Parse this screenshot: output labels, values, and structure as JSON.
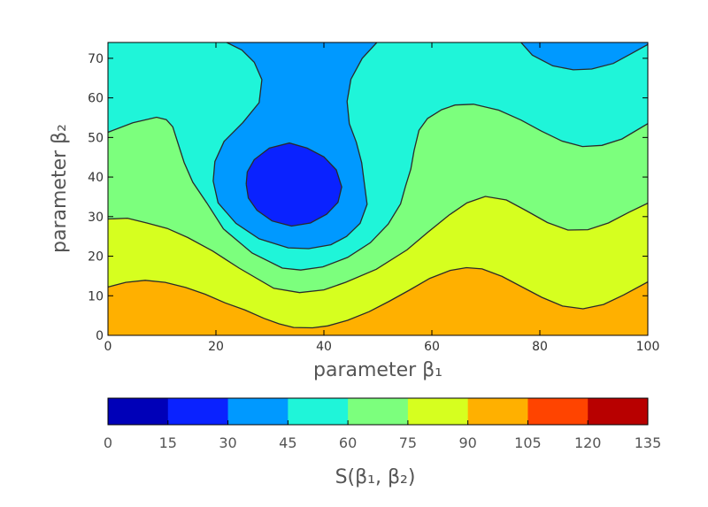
{
  "chart_data": {
    "type": "filled-contour",
    "xlabel": "parameter β₁",
    "ylabel": "parameter β₂",
    "xlim": [
      0,
      100
    ],
    "ylim": [
      0,
      74
    ],
    "x_ticks": [
      "0",
      "20",
      "40",
      "60",
      "80",
      "100"
    ],
    "y_ticks": [
      "0",
      "10",
      "20",
      "30",
      "40",
      "50",
      "60",
      "70"
    ],
    "colorbar": {
      "label": "S(β₁, β₂)",
      "orientation": "horizontal",
      "levels": [
        0,
        15,
        30,
        45,
        60,
        75,
        90,
        105,
        120,
        135
      ],
      "tick_labels": [
        "0",
        "15",
        "30",
        "45",
        "60",
        "75",
        "90",
        "105",
        "120",
        "135"
      ],
      "colors": [
        "#0000b8",
        "#0a22ff",
        "#0099ff",
        "#1ff5d9",
        "#7cff7d",
        "#d6ff1f",
        "#ffb000",
        "#ff4400",
        "#b80000"
      ]
    },
    "contour_lines": [
      {
        "level": 15,
        "points": [
          [
            25.6,
            38.2
          ],
          [
            26.0,
            34.7
          ],
          [
            27.6,
            31.6
          ],
          [
            30.4,
            28.9
          ],
          [
            34.0,
            27.6
          ],
          [
            37.5,
            28.4
          ],
          [
            40.5,
            30.6
          ],
          [
            42.6,
            33.6
          ],
          [
            43.3,
            37.5
          ],
          [
            42.3,
            41.8
          ],
          [
            40.0,
            45.1
          ],
          [
            36.9,
            47.3
          ],
          [
            33.6,
            48.6
          ],
          [
            29.9,
            47.3
          ],
          [
            27.1,
            44.4
          ],
          [
            25.8,
            41.3
          ],
          [
            25.6,
            38.2
          ]
        ]
      },
      {
        "level": 30,
        "points": [
          [
            22.0,
            74
          ],
          [
            24.8,
            72.1
          ],
          [
            27.1,
            69.0
          ],
          [
            28.5,
            64.6
          ],
          [
            28.0,
            58.8
          ],
          [
            25.0,
            53.8
          ],
          [
            21.5,
            49.0
          ],
          [
            19.8,
            43.9
          ],
          [
            19.5,
            39.0
          ],
          [
            20.4,
            33.5
          ],
          [
            23.7,
            28.3
          ],
          [
            28.0,
            24.4
          ],
          [
            33.4,
            22.1
          ],
          [
            37.2,
            21.9
          ],
          [
            41.3,
            22.9
          ],
          [
            44.2,
            25.0
          ],
          [
            46.7,
            28.3
          ],
          [
            48.0,
            33.1
          ],
          [
            47.5,
            38.2
          ],
          [
            47.0,
            43.6
          ],
          [
            46.0,
            48.8
          ],
          [
            44.7,
            53.5
          ],
          [
            44.3,
            59.1
          ],
          [
            45.0,
            64.7
          ],
          [
            47.1,
            70.0
          ],
          [
            49.8,
            74
          ]
        ]
      },
      {
        "level": 30,
        "points": [
          [
            76.5,
            74
          ],
          [
            78.6,
            70.8
          ],
          [
            82.4,
            68.1
          ],
          [
            86.2,
            67.1
          ],
          [
            89.6,
            67.3
          ],
          [
            93.6,
            68.7
          ],
          [
            97.1,
            71.3
          ],
          [
            100,
            73.5
          ]
        ]
      },
      {
        "level": 45,
        "points": [
          [
            0,
            51.3
          ],
          [
            4.6,
            53.7
          ],
          [
            9.0,
            55.1
          ],
          [
            10.8,
            54.5
          ],
          [
            12.0,
            52.7
          ],
          [
            13.0,
            48.4
          ],
          [
            14.1,
            43.7
          ],
          [
            15.7,
            38.7
          ],
          [
            18.3,
            33.5
          ],
          [
            21.4,
            26.9
          ],
          [
            26.7,
            20.8
          ],
          [
            32.3,
            17.0
          ],
          [
            35.7,
            16.5
          ],
          [
            39.8,
            17.3
          ],
          [
            44.4,
            19.7
          ],
          [
            48.6,
            23.4
          ],
          [
            51.9,
            28.1
          ],
          [
            54.2,
            33.2
          ],
          [
            55.1,
            37.6
          ],
          [
            56.1,
            42.0
          ],
          [
            56.7,
            46.7
          ],
          [
            57.6,
            51.8
          ],
          [
            59.2,
            54.8
          ],
          [
            61.8,
            57.0
          ],
          [
            64.3,
            58.2
          ],
          [
            67.7,
            58.4
          ],
          [
            72.4,
            56.9
          ],
          [
            76.5,
            54.4
          ],
          [
            80.3,
            51.6
          ],
          [
            84.1,
            49.1
          ],
          [
            87.9,
            47.7
          ],
          [
            91.5,
            48.0
          ],
          [
            95.2,
            49.6
          ],
          [
            100,
            53.5
          ]
        ]
      },
      {
        "level": 60,
        "points": [
          [
            0,
            29.4
          ],
          [
            3.6,
            29.6
          ],
          [
            7.2,
            28.4
          ],
          [
            11.0,
            27.0
          ],
          [
            14.8,
            24.7
          ],
          [
            19.4,
            21.3
          ],
          [
            24.3,
            17.0
          ],
          [
            30.7,
            11.9
          ],
          [
            35.5,
            10.8
          ],
          [
            40.0,
            11.5
          ],
          [
            44.0,
            13.4
          ],
          [
            49.7,
            16.7
          ],
          [
            55.4,
            21.6
          ],
          [
            59.3,
            26.1
          ],
          [
            63.2,
            30.4
          ],
          [
            66.5,
            33.5
          ],
          [
            69.9,
            35.1
          ],
          [
            73.8,
            34.2
          ],
          [
            77.6,
            31.4
          ],
          [
            81.4,
            28.5
          ],
          [
            85.2,
            26.6
          ],
          [
            88.9,
            26.7
          ],
          [
            92.7,
            28.4
          ],
          [
            96.5,
            31.1
          ],
          [
            100,
            33.4
          ]
        ]
      },
      {
        "level": 75,
        "points": [
          [
            0,
            12.2
          ],
          [
            3.3,
            13.4
          ],
          [
            6.9,
            13.9
          ],
          [
            10.6,
            13.4
          ],
          [
            14.4,
            12.1
          ],
          [
            18.0,
            10.4
          ],
          [
            21.7,
            8.2
          ],
          [
            25.4,
            6.4
          ],
          [
            28.9,
            4.3
          ],
          [
            31.7,
            2.9
          ],
          [
            34.4,
            2.0
          ],
          [
            37.9,
            1.9
          ],
          [
            40.7,
            2.4
          ],
          [
            44.4,
            3.8
          ],
          [
            48.4,
            6.0
          ],
          [
            52.1,
            8.6
          ],
          [
            55.8,
            11.4
          ],
          [
            59.6,
            14.4
          ],
          [
            63.4,
            16.4
          ],
          [
            66.4,
            17.1
          ],
          [
            69.3,
            16.8
          ],
          [
            73.0,
            14.9
          ],
          [
            76.6,
            12.3
          ],
          [
            80.4,
            9.6
          ],
          [
            84.2,
            7.4
          ],
          [
            88.0,
            6.7
          ],
          [
            91.8,
            7.8
          ],
          [
            95.5,
            10.2
          ],
          [
            100,
            13.5
          ]
        ]
      }
    ]
  }
}
